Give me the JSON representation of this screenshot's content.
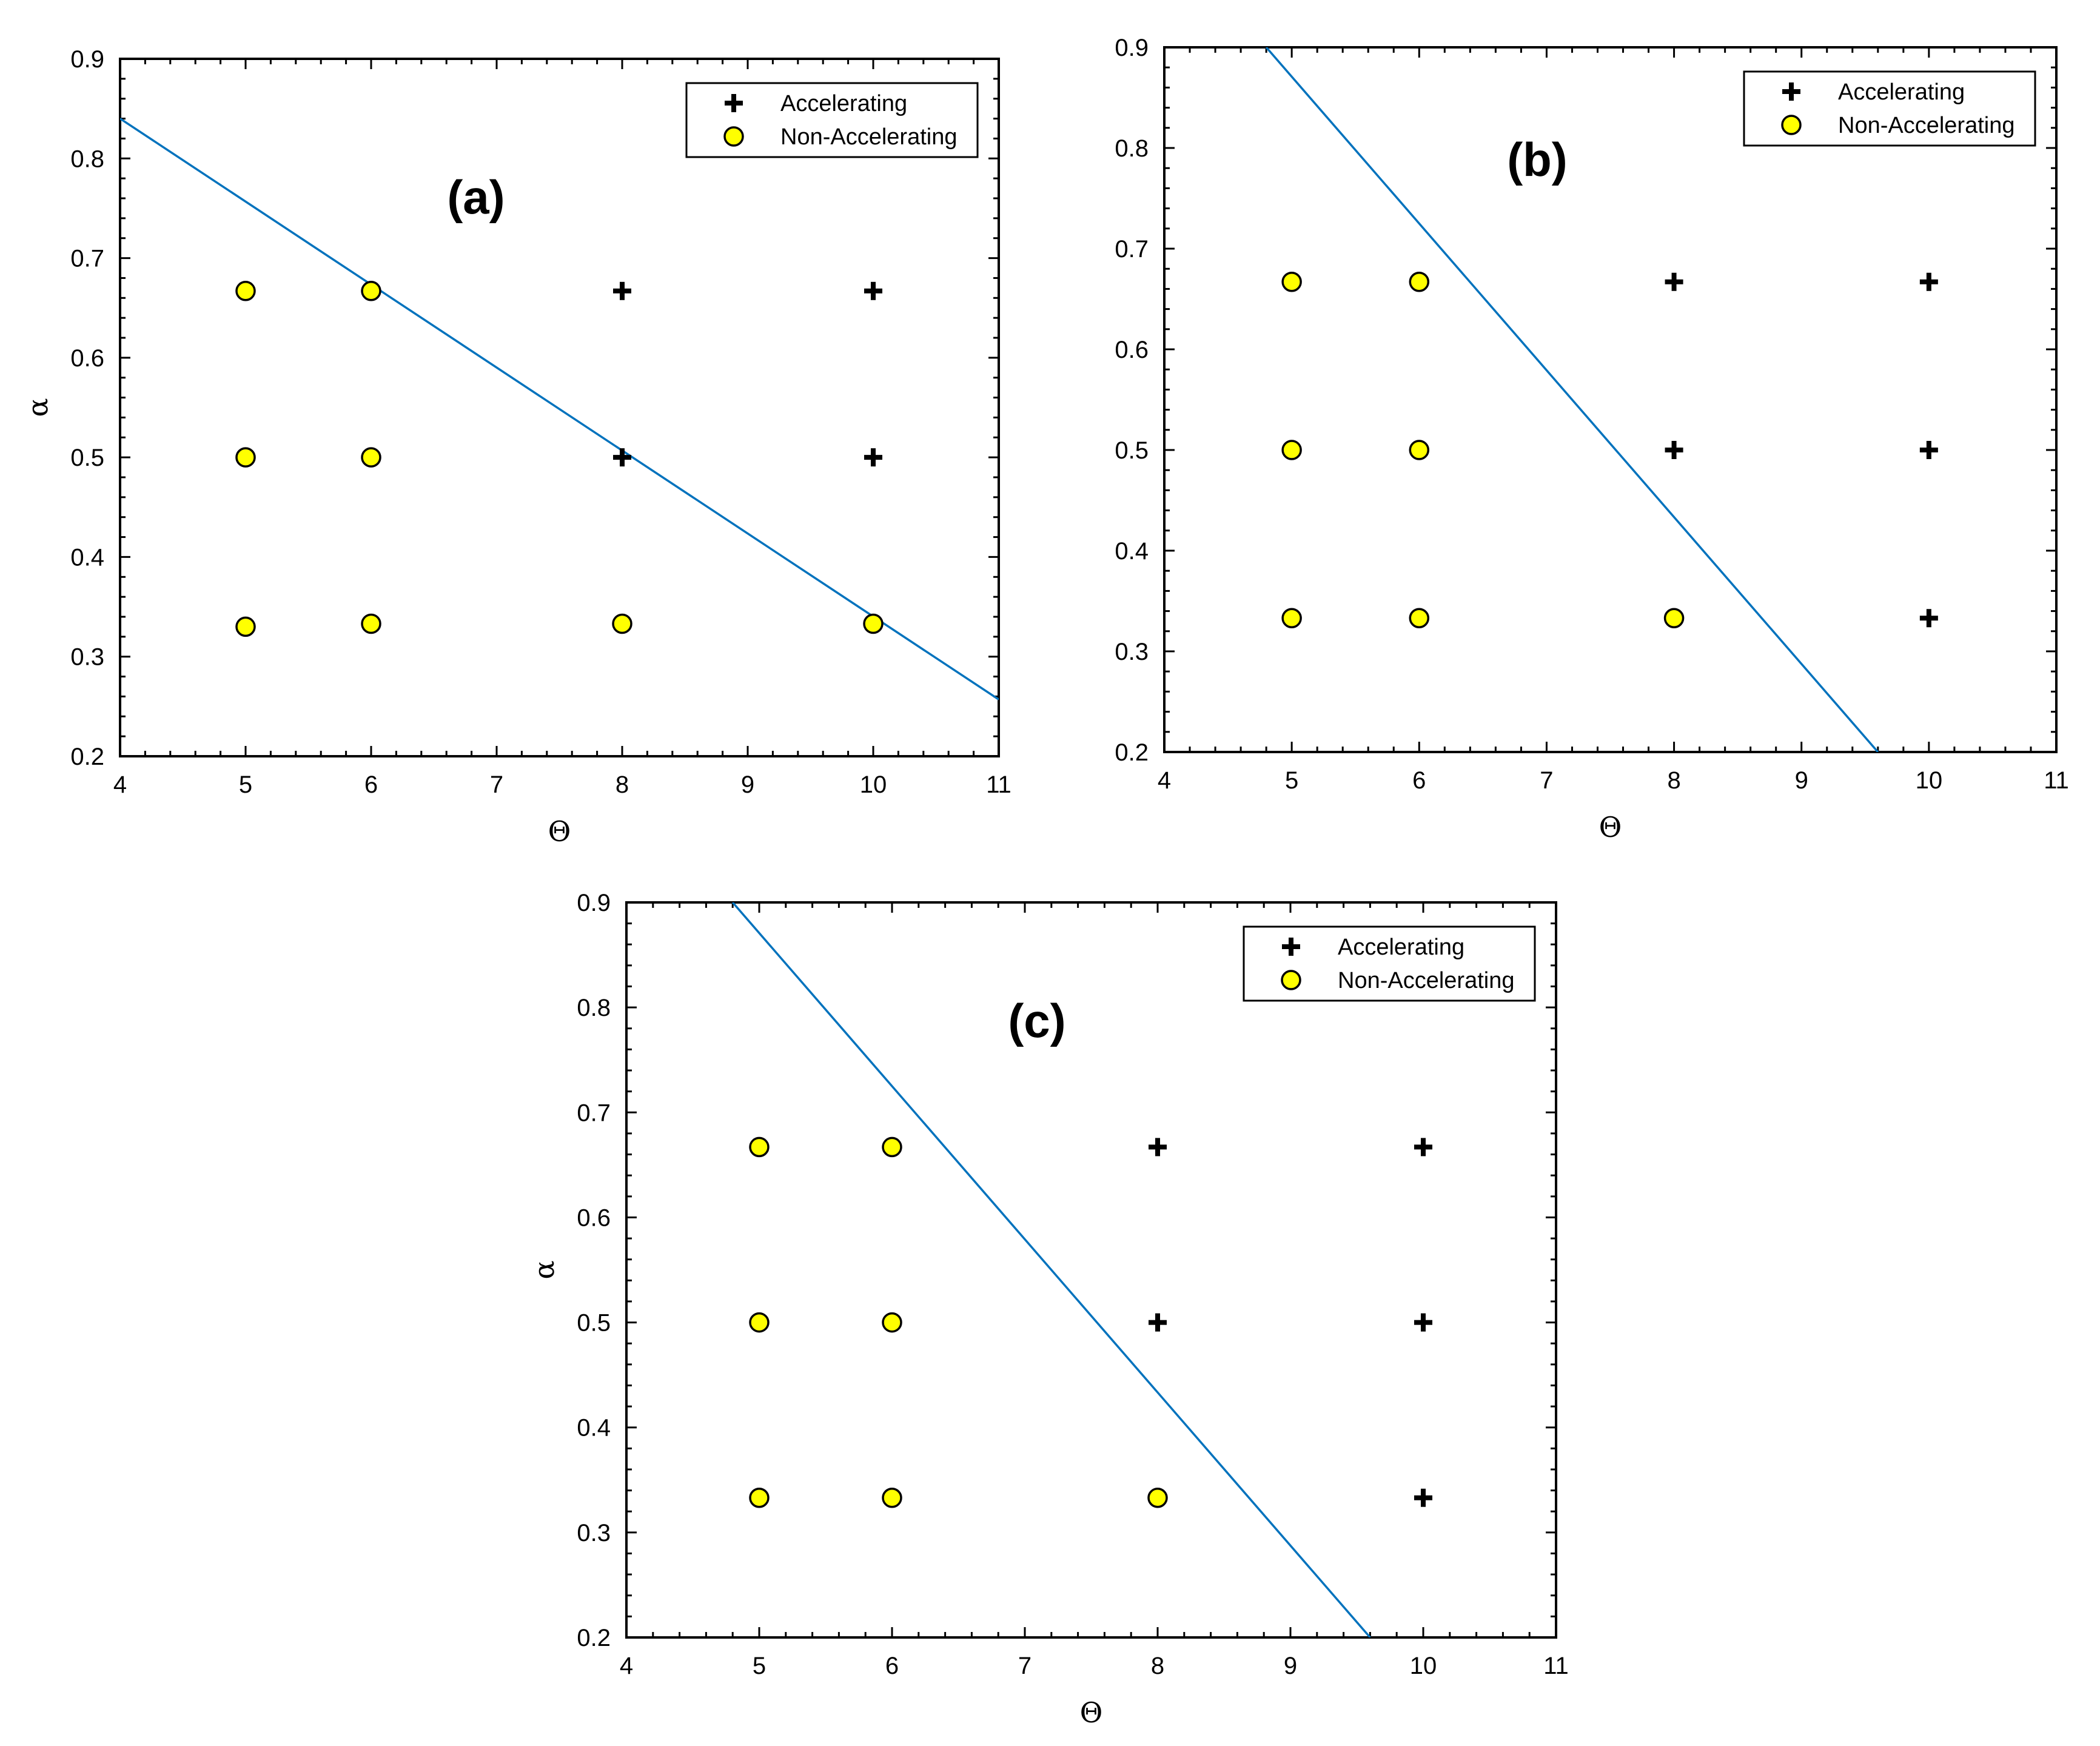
{
  "chart_data": [
    {
      "type": "scatter",
      "panel_label": "(a)",
      "xlabel": "Θ",
      "ylabel": "α",
      "xlim": [
        4,
        11
      ],
      "ylim": [
        0.2,
        0.9
      ],
      "x_ticks": [
        "4",
        "5",
        "6",
        "7",
        "8",
        "9",
        "10",
        "11"
      ],
      "y_ticks": [
        "0.2",
        "0.3",
        "0.4",
        "0.5",
        "0.6",
        "0.7",
        "0.8",
        "0.9"
      ],
      "legend_position": "top-right",
      "series": [
        {
          "name": "Accelerating",
          "marker": "plus",
          "color": "#000000",
          "points": [
            [
              8,
              0.667
            ],
            [
              10,
              0.667
            ],
            [
              8,
              0.5
            ],
            [
              10,
              0.5
            ]
          ]
        },
        {
          "name": "Non-Accelerating",
          "marker": "circle",
          "color": "#ffff00",
          "points": [
            [
              5,
              0.667
            ],
            [
              6,
              0.667
            ],
            [
              5,
              0.5
            ],
            [
              6,
              0.5
            ],
            [
              5,
              0.33
            ],
            [
              6,
              0.333
            ],
            [
              8,
              0.333
            ],
            [
              10,
              0.333
            ]
          ]
        }
      ],
      "boundary_line": {
        "color": "#0072bd",
        "points": [
          [
            4,
            0.84
          ],
          [
            11,
            0.257
          ]
        ]
      }
    },
    {
      "type": "scatter",
      "panel_label": "(b)",
      "xlabel": "Θ",
      "ylabel": "",
      "xlim": [
        4,
        11
      ],
      "ylim": [
        0.2,
        0.9
      ],
      "x_ticks": [
        "4",
        "5",
        "6",
        "7",
        "8",
        "9",
        "10",
        "11"
      ],
      "y_ticks": [
        "0.2",
        "0.3",
        "0.4",
        "0.5",
        "0.6",
        "0.7",
        "0.8",
        "0.9"
      ],
      "legend_position": "top-right",
      "series": [
        {
          "name": "Accelerating",
          "marker": "plus",
          "color": "#000000",
          "points": [
            [
              8,
              0.667
            ],
            [
              10,
              0.667
            ],
            [
              8,
              0.5
            ],
            [
              10,
              0.5
            ],
            [
              10,
              0.333
            ]
          ]
        },
        {
          "name": "Non-Accelerating",
          "marker": "circle",
          "color": "#ffff00",
          "points": [
            [
              5,
              0.667
            ],
            [
              6,
              0.667
            ],
            [
              5,
              0.5
            ],
            [
              6,
              0.5
            ],
            [
              5,
              0.333
            ],
            [
              6,
              0.333
            ],
            [
              8,
              0.333
            ]
          ]
        }
      ],
      "boundary_line": {
        "color": "#0072bd",
        "points": [
          [
            4.8,
            0.9
          ],
          [
            9.6,
            0.2
          ]
        ]
      }
    },
    {
      "type": "scatter",
      "panel_label": "(c)",
      "xlabel": "Θ",
      "ylabel": "α",
      "xlim": [
        4,
        11
      ],
      "ylim": [
        0.2,
        0.9
      ],
      "x_ticks": [
        "4",
        "5",
        "6",
        "7",
        "8",
        "9",
        "10",
        "11"
      ],
      "y_ticks": [
        "0.2",
        "0.3",
        "0.4",
        "0.5",
        "0.6",
        "0.7",
        "0.8",
        "0.9"
      ],
      "legend_position": "top-right",
      "series": [
        {
          "name": "Accelerating",
          "marker": "plus",
          "color": "#000000",
          "points": [
            [
              8,
              0.667
            ],
            [
              10,
              0.667
            ],
            [
              8,
              0.5
            ],
            [
              10,
              0.5
            ],
            [
              10,
              0.333
            ]
          ]
        },
        {
          "name": "Non-Accelerating",
          "marker": "circle",
          "color": "#ffff00",
          "points": [
            [
              5,
              0.667
            ],
            [
              6,
              0.667
            ],
            [
              5,
              0.5
            ],
            [
              6,
              0.5
            ],
            [
              5,
              0.333
            ],
            [
              6,
              0.333
            ],
            [
              8,
              0.333
            ]
          ]
        }
      ],
      "boundary_line": {
        "color": "#0072bd",
        "points": [
          [
            4.8,
            0.9
          ],
          [
            9.6,
            0.2
          ]
        ]
      }
    }
  ]
}
